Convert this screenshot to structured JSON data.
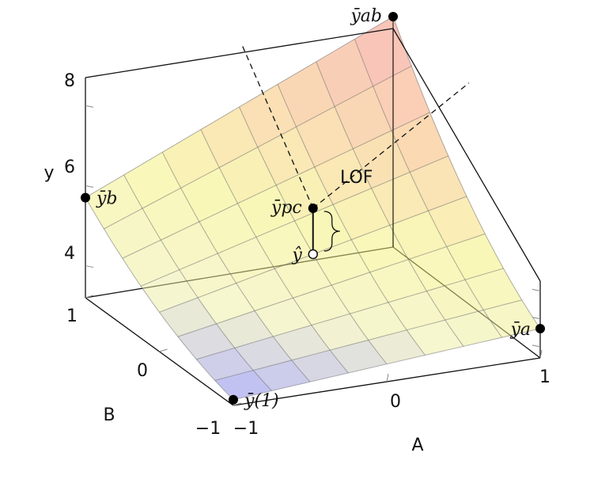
{
  "chart_data": {
    "type": "surface3d",
    "x_label": "A",
    "y_label": "B",
    "z_label": "y",
    "x_ticks": [
      "−1",
      "0",
      "1"
    ],
    "y_ticks": [
      "−1",
      "0",
      "1"
    ],
    "z_ticks": [
      "4",
      "6",
      "8"
    ],
    "xlim": [
      -1,
      1
    ],
    "ylim": [
      -1,
      1
    ],
    "zlim": [
      3.2,
      8.7
    ],
    "grid_divisions": 8,
    "colormap": [
      "#6e6ef5",
      "#ededa0",
      "#f4f070",
      "#f6b468",
      "#f2797a"
    ],
    "surface_opacity": 0.5,
    "points": [
      {
        "id": "y1",
        "label": "ȳ(1)",
        "a": -1,
        "b": -1,
        "y": 3.6
      },
      {
        "id": "ya",
        "label": "ȳa",
        "a": 1,
        "b": -1,
        "y": 5.3
      },
      {
        "id": "yb",
        "label": "ȳb",
        "a": -1,
        "b": 1,
        "y": 5.7
      },
      {
        "id": "yab",
        "label": "ȳab",
        "a": 1,
        "b": 1,
        "y": 9.0
      },
      {
        "id": "ypc",
        "label": "ȳpc",
        "a": 0,
        "b": 0,
        "y": 7.6
      },
      {
        "id": "yhat",
        "label": "ŷ",
        "a": 0,
        "b": 0,
        "y": 5.9
      }
    ],
    "annotation": {
      "label": "LOF"
    }
  }
}
